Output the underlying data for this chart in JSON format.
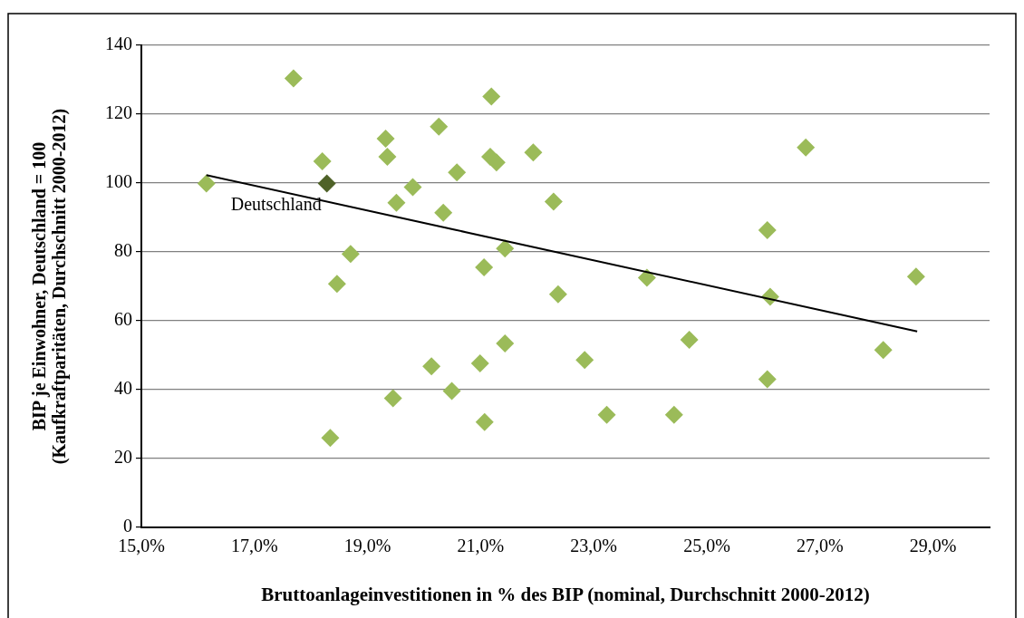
{
  "chart_data": {
    "type": "scatter",
    "xlabel": "Bruttoanlageinvestitionen in % des BIP (nominal, Durchschnitt 2000-2012)",
    "ylabel": "BIP je Einwohner, Deutschland = 100\n(Kaufkraftparitäten, Durchschnitt 2000-2012)",
    "xlim": [
      15,
      30
    ],
    "xticks": [
      {
        "value": 15,
        "label": "15,0%"
      },
      {
        "value": 17,
        "label": "17,0%"
      },
      {
        "value": 19,
        "label": "19,0%"
      },
      {
        "value": 21,
        "label": "21,0%"
      },
      {
        "value": 23,
        "label": "23,0%"
      },
      {
        "value": 25,
        "label": "25,0%"
      },
      {
        "value": 27,
        "label": "27,0%"
      },
      {
        "value": 29,
        "label": "29,0%"
      }
    ],
    "ylim": [
      0,
      140
    ],
    "yticks": [
      0,
      20,
      40,
      60,
      80,
      100,
      120,
      140
    ],
    "grid": "y",
    "legend": false,
    "marker": "diamond",
    "series": [
      {
        "type": "scatter",
        "x": [
          17.69,
          21.19,
          20.26,
          19.32,
          19.35,
          18.2,
          21.17,
          21.28,
          21.93,
          20.58,
          16.15,
          18.28,
          19.8,
          19.51,
          20.34,
          22.29,
          21.43,
          18.7,
          21.06,
          18.46,
          22.37,
          21.43,
          20.13,
          20.99,
          20.49,
          19.45,
          21.07,
          18.34,
          26.75,
          26.07,
          23.94,
          28.7,
          26.12,
          24.69,
          22.84,
          28.12,
          26.07,
          23.23,
          24.42
        ],
        "values": [
          130.4,
          125.1,
          116.4,
          112.9,
          107.6,
          106.3,
          107.6,
          106,
          108.9,
          103.1,
          99.9,
          99.9,
          98.8,
          94.3,
          91.4,
          94.6,
          81,
          79.4,
          75.5,
          70.7,
          67.7,
          53.4,
          46.8,
          47.6,
          39.6,
          37.5,
          30.6,
          26,
          110.3,
          86.3,
          72.5,
          72.8,
          67,
          54.5,
          48.6,
          51.5,
          43,
          32.7,
          32.7
        ],
        "colors": [
          "#9bbb59",
          "#9bbb59",
          "#9bbb59",
          "#9bbb59",
          "#9bbb59",
          "#9bbb59",
          "#9bbb59",
          "#9bbb59",
          "#9bbb59",
          "#9bbb59",
          "#9bbb59",
          "#4f6228",
          "#9bbb59",
          "#9bbb59",
          "#9bbb59",
          "#9bbb59",
          "#9bbb59",
          "#9bbb59",
          "#9bbb59",
          "#9bbb59",
          "#9bbb59",
          "#9bbb59",
          "#9bbb59",
          "#9bbb59",
          "#9bbb59",
          "#9bbb59",
          "#9bbb59",
          "#9bbb59",
          "#9bbb59",
          "#9bbb59",
          "#9bbb59",
          "#9bbb59",
          "#9bbb59",
          "#9bbb59",
          "#9bbb59",
          "#9bbb59",
          "#9bbb59",
          "#9bbb59",
          "#9bbb59"
        ]
      },
      {
        "type": "line",
        "color": "#000000",
        "marker": "none",
        "x": [
          16.15,
          28.72
        ],
        "values": [
          102.3,
          56.9
        ]
      }
    ],
    "annotations": [
      {
        "text": "Deutschland",
        "x": 18.28,
        "y": 99.9
      }
    ]
  }
}
